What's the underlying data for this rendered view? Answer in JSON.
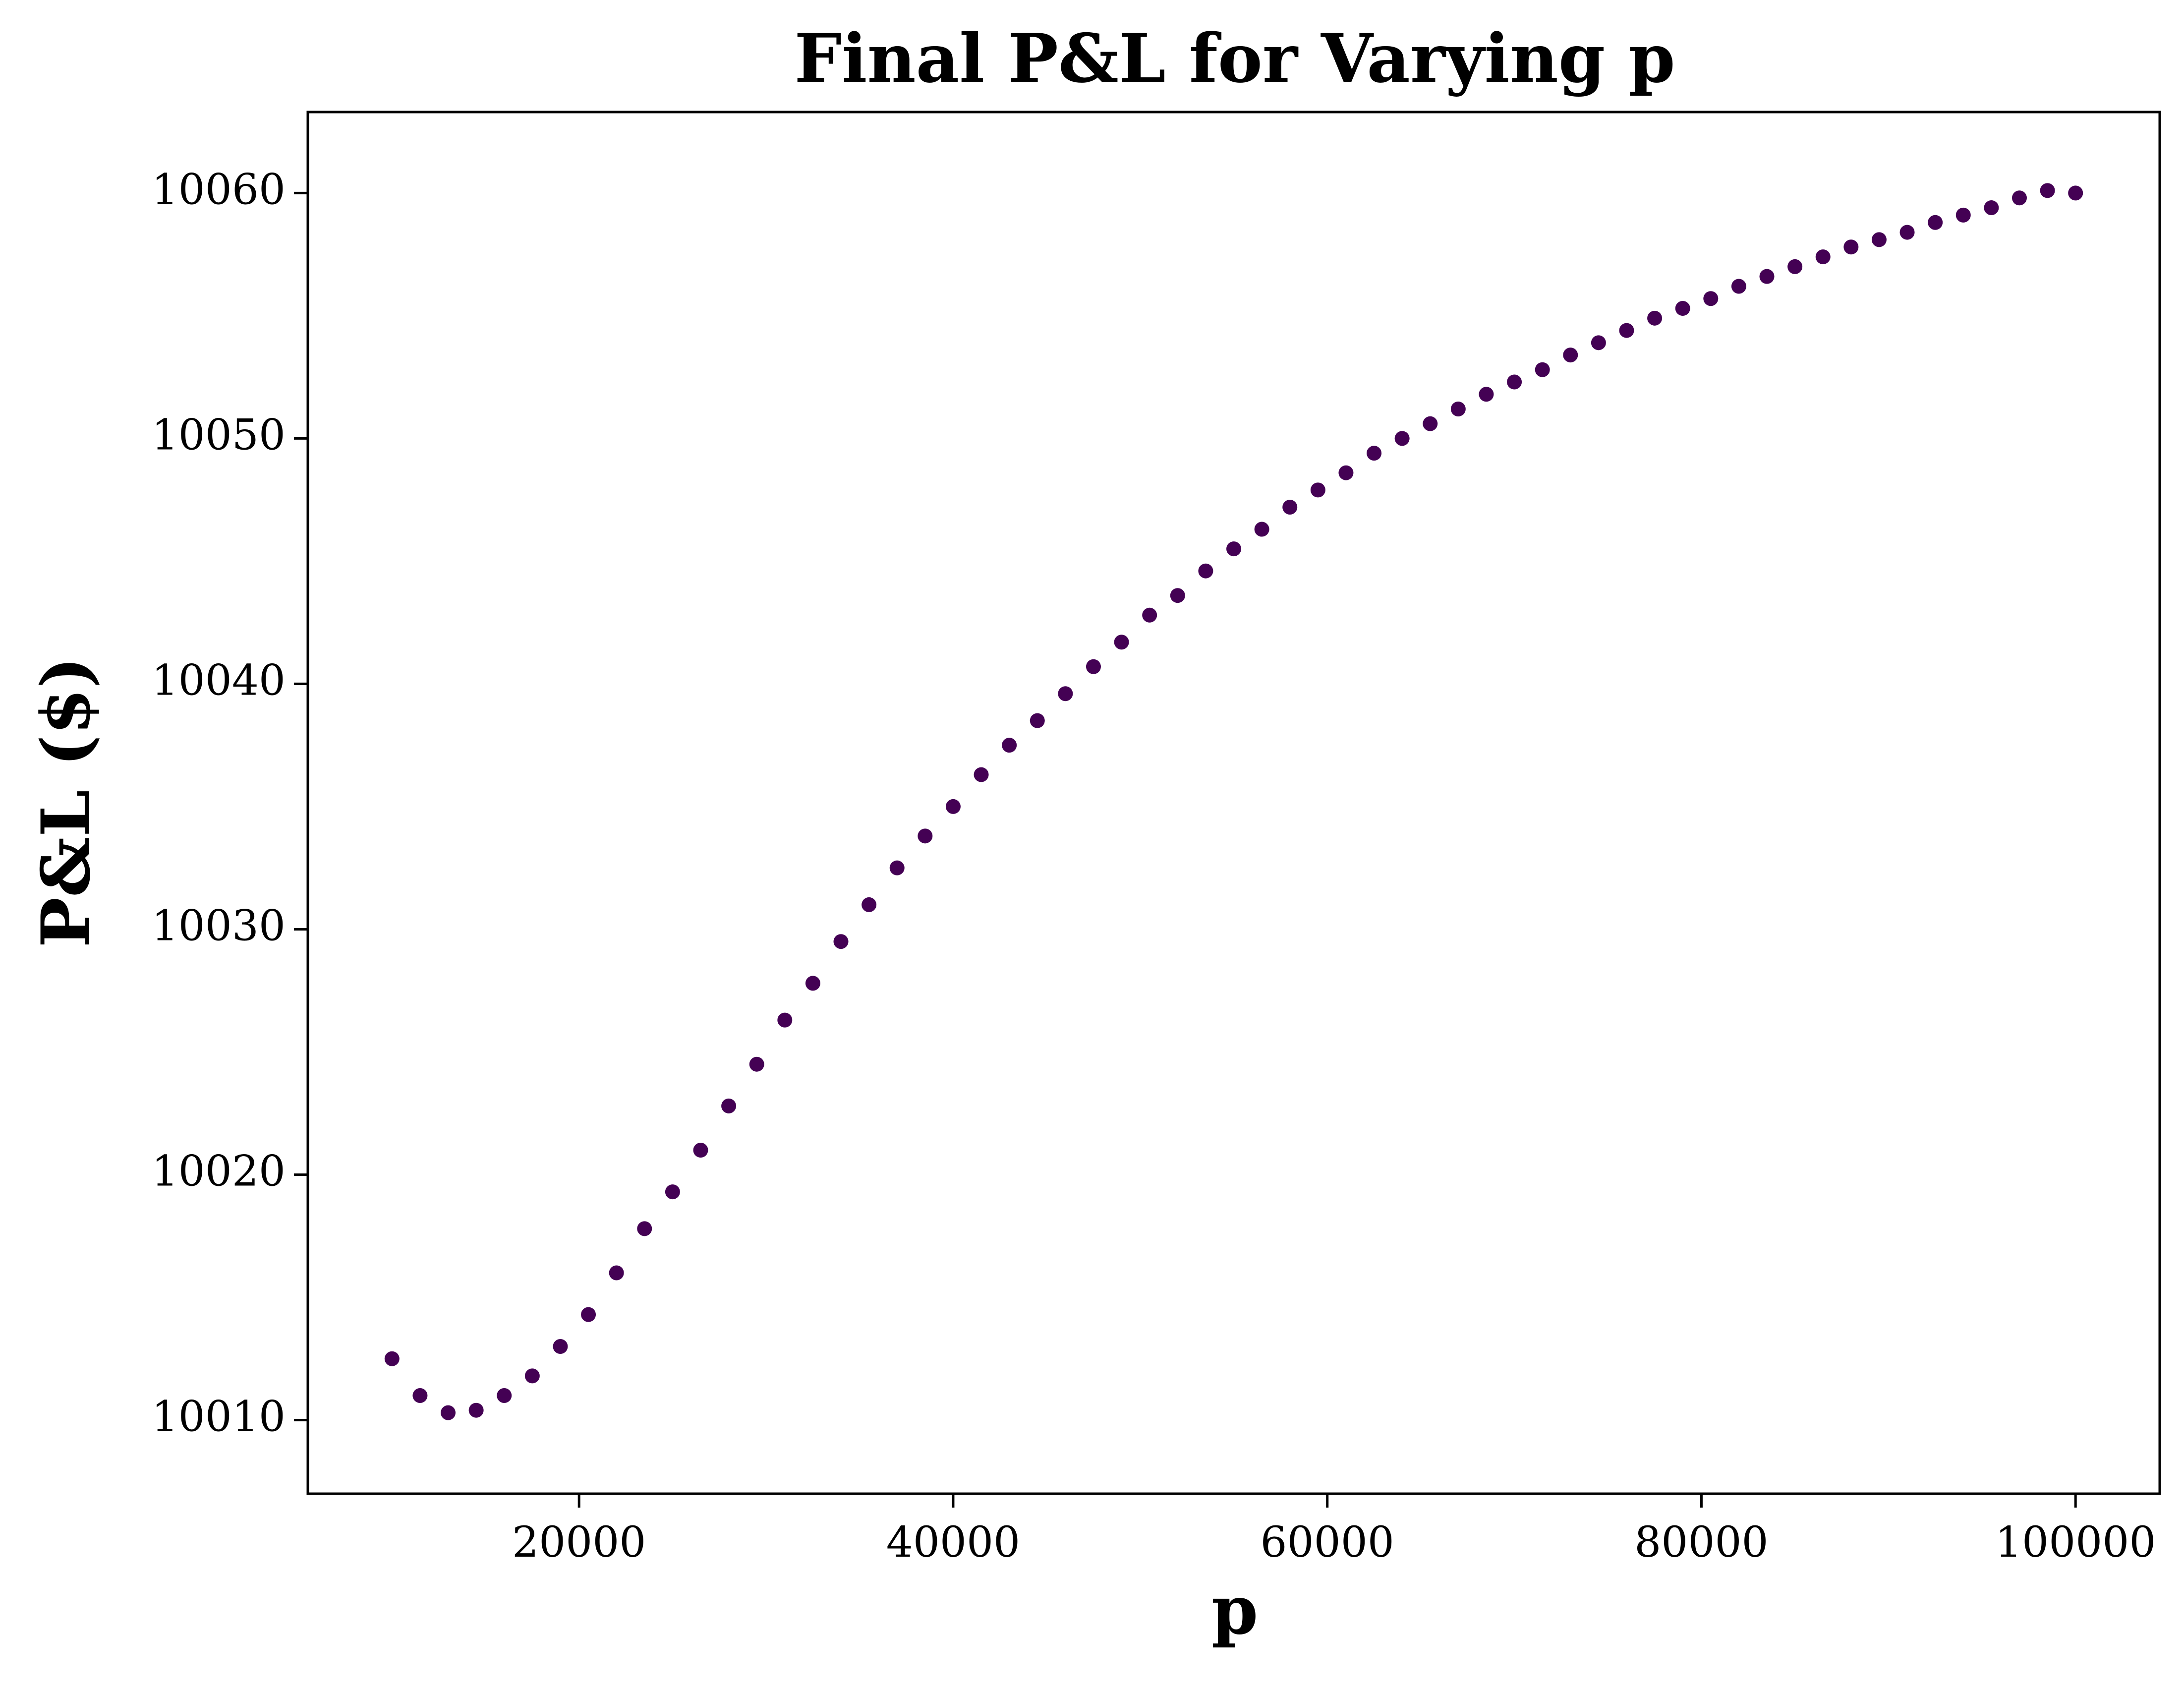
{
  "chart_data": {
    "type": "scatter",
    "title": "Final P&L for Varying p",
    "x_label": "p",
    "y_label": "P&L ($)",
    "x": [
      10000,
      11500,
      13000,
      14500,
      16000,
      17500,
      19000,
      20500,
      22000,
      23500,
      25000,
      26500,
      28000,
      29500,
      31000,
      32500,
      34000,
      35500,
      37000,
      38500,
      40000,
      41500,
      43000,
      44500,
      46000,
      47500,
      49000,
      50500,
      52000,
      53500,
      55000,
      56500,
      58000,
      59500,
      61000,
      62500,
      64000,
      65500,
      67000,
      68500,
      70000,
      71500,
      73000,
      74500,
      76000,
      77500,
      79000,
      80500,
      82000,
      83500,
      85000,
      86500,
      88000,
      89500,
      91000,
      92500,
      94000,
      95500,
      97000,
      98500,
      100000
    ],
    "series": [
      {
        "color": "#440154",
        "values": [
          10012.5,
          10011.0,
          10010.3,
          10010.4,
          10011.0,
          10011.8,
          10013.0,
          10014.3,
          10016.0,
          10017.8,
          10019.3,
          10021.0,
          10022.8,
          10024.5,
          10026.3,
          10027.8,
          10029.5,
          10031.0,
          10032.5,
          10033.8,
          10035.0,
          10036.3,
          10037.5,
          10038.5,
          10039.6,
          10040.7,
          10041.7,
          10042.8,
          10043.6,
          10044.6,
          10045.5,
          10046.3,
          10047.2,
          10047.9,
          10048.6,
          10049.4,
          10050.0,
          10050.6,
          10051.2,
          10051.8,
          10052.3,
          10052.8,
          10053.4,
          10053.9,
          10054.4,
          10054.9,
          10055.3,
          10055.7,
          10056.2,
          10056.6,
          10057.0,
          10057.4,
          10057.8,
          10058.1,
          10058.4,
          10058.8,
          10059.1,
          10059.4,
          10059.8,
          10060.1,
          10060.0
        ]
      }
    ],
    "xlim": [
      5500,
      104500
    ],
    "ylim": [
      10007.0,
      10063.3
    ],
    "xticks": [
      20000,
      40000,
      60000,
      80000,
      100000
    ],
    "yticks": [
      10010,
      10020,
      10030,
      10040,
      10050,
      10060
    ],
    "grid": false
  }
}
